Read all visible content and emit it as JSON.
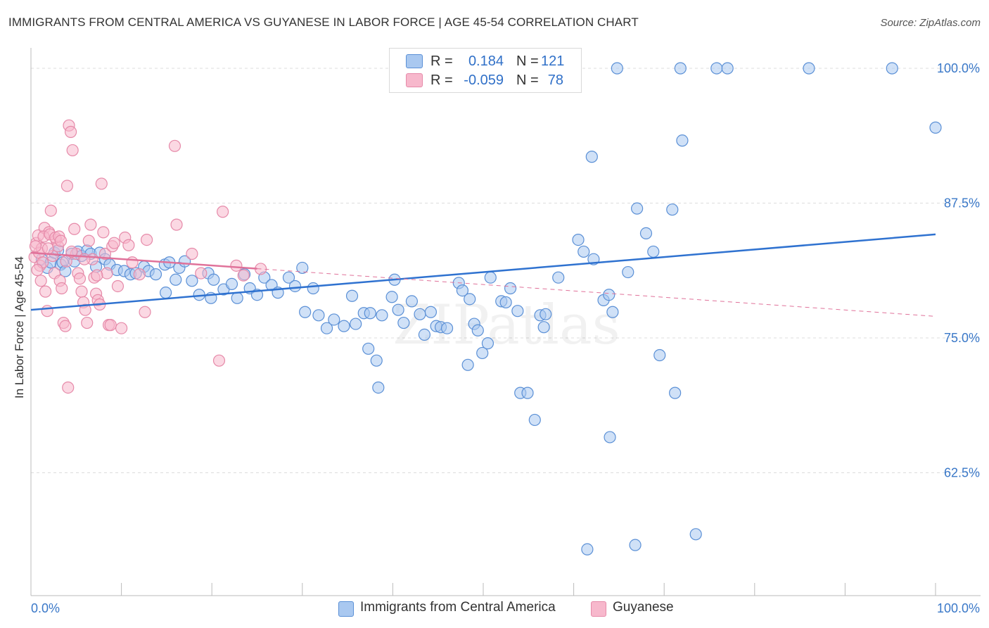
{
  "title": "IMMIGRANTS FROM CENTRAL AMERICA VS GUYANESE IN LABOR FORCE | AGE 45-54 CORRELATION CHART",
  "source": "Source: ZipAtlas.com",
  "watermark": "ZIPatlas",
  "colors": {
    "blue_fill": "#a9c8f0",
    "blue_stroke": "#5b90d6",
    "blue_line": "#2f72d0",
    "pink_fill": "#f7b8cc",
    "pink_stroke": "#e68aa9",
    "pink_line": "#e0729a",
    "grid": "#dddddd",
    "axis_label": "#3a78c8"
  },
  "legend_top": {
    "rows": [
      {
        "series": "blue",
        "r_label": "R =",
        "r_value": "0.184",
        "n_label": "N =",
        "n_value": "121"
      },
      {
        "series": "pink",
        "r_label": "R =",
        "r_value": "-0.059",
        "n_label": "N =",
        "n_value": "78"
      }
    ]
  },
  "legend_bottom": [
    {
      "series": "blue",
      "label": "Immigrants from Central America"
    },
    {
      "series": "pink",
      "label": "Guyanese"
    }
  ],
  "chart_data": {
    "type": "scatter",
    "title": "IMMIGRANTS FROM CENTRAL AMERICA VS GUYANESE IN LABOR FORCE | AGE 45-54 CORRELATION CHART",
    "xlabel": "",
    "ylabel": "In Labor Force | Age 45-54",
    "xlim": [
      0,
      100
    ],
    "ylim": [
      50,
      101.5
    ],
    "x_tick_labels": [
      "0.0%",
      "100.0%"
    ],
    "y_ticks": [
      62.5,
      75.0,
      87.5,
      100.0
    ],
    "y_tick_labels": [
      "62.5%",
      "75.0%",
      "87.5%",
      "100.0%"
    ],
    "grid": true,
    "series": [
      {
        "name": "Immigrants from Central America",
        "color": "blue",
        "trend": {
          "x": [
            0,
            100
          ],
          "y": [
            77.6,
            84.6
          ],
          "style": "solid"
        },
        "points": [
          [
            1.2,
            82.3
          ],
          [
            1.8,
            81.5
          ],
          [
            2.2,
            82.0
          ],
          [
            2.6,
            82.9
          ],
          [
            3.0,
            83.1
          ],
          [
            3.3,
            81.8
          ],
          [
            3.5,
            82.0
          ],
          [
            3.8,
            81.2
          ],
          [
            4.5,
            82.8
          ],
          [
            4.8,
            82.1
          ],
          [
            5.2,
            83.0
          ],
          [
            5.6,
            82.6
          ],
          [
            6.2,
            83.1
          ],
          [
            6.6,
            82.8
          ],
          [
            7.2,
            81.6
          ],
          [
            7.6,
            82.9
          ],
          [
            8.2,
            82.3
          ],
          [
            8.7,
            81.8
          ],
          [
            9.5,
            81.3
          ],
          [
            10.3,
            81.2
          ],
          [
            11.0,
            80.9
          ],
          [
            11.6,
            81.0
          ],
          [
            12.5,
            81.6
          ],
          [
            13.0,
            81.2
          ],
          [
            13.8,
            80.9
          ],
          [
            14.8,
            81.8
          ],
          [
            15.3,
            82.0
          ],
          [
            16.0,
            80.4
          ],
          [
            16.4,
            81.5
          ],
          [
            17.0,
            82.1
          ],
          [
            17.8,
            80.3
          ],
          [
            18.6,
            79.0
          ],
          [
            19.6,
            81.0
          ],
          [
            20.2,
            80.4
          ],
          [
            21.3,
            79.5
          ],
          [
            22.2,
            80.0
          ],
          [
            22.8,
            78.7
          ],
          [
            23.6,
            80.9
          ],
          [
            24.2,
            79.6
          ],
          [
            25.0,
            79.0
          ],
          [
            25.8,
            80.6
          ],
          [
            26.6,
            79.9
          ],
          [
            27.3,
            79.2
          ],
          [
            28.5,
            80.6
          ],
          [
            29.2,
            79.8
          ],
          [
            30.3,
            77.4
          ],
          [
            31.2,
            79.6
          ],
          [
            31.8,
            77.1
          ],
          [
            32.7,
            75.9
          ],
          [
            33.5,
            76.7
          ],
          [
            34.6,
            76.1
          ],
          [
            35.5,
            78.9
          ],
          [
            35.9,
            76.3
          ],
          [
            36.8,
            77.3
          ],
          [
            37.5,
            77.3
          ],
          [
            37.3,
            74.0
          ],
          [
            38.2,
            72.9
          ],
          [
            38.4,
            70.4
          ],
          [
            38.8,
            77.1
          ],
          [
            39.9,
            78.8
          ],
          [
            40.6,
            77.6
          ],
          [
            41.2,
            76.4
          ],
          [
            42.1,
            78.4
          ],
          [
            43.0,
            77.2
          ],
          [
            43.5,
            75.3
          ],
          [
            44.2,
            77.4
          ],
          [
            44.8,
            76.1
          ],
          [
            45.3,
            76.0
          ],
          [
            46.0,
            75.9
          ],
          [
            47.3,
            80.1
          ],
          [
            47.7,
            79.4
          ],
          [
            48.3,
            72.5
          ],
          [
            49.0,
            76.3
          ],
          [
            49.4,
            75.7
          ],
          [
            49.9,
            73.6
          ],
          [
            50.5,
            74.5
          ],
          [
            50.8,
            80.6
          ],
          [
            52.0,
            78.4
          ],
          [
            52.5,
            78.3
          ],
          [
            53.0,
            79.6
          ],
          [
            53.8,
            77.5
          ],
          [
            54.1,
            69.9
          ],
          [
            54.9,
            69.9
          ],
          [
            55.7,
            67.4
          ],
          [
            56.3,
            77.1
          ],
          [
            56.7,
            76.0
          ],
          [
            56.9,
            77.2
          ],
          [
            58.3,
            80.6
          ],
          [
            60.5,
            84.1
          ],
          [
            61.1,
            83.0
          ],
          [
            62.0,
            91.8
          ],
          [
            63.3,
            78.5
          ],
          [
            63.9,
            79.0
          ],
          [
            64.0,
            65.8
          ],
          [
            64.3,
            77.4
          ],
          [
            66.0,
            81.1
          ],
          [
            67.0,
            87.0
          ],
          [
            68.0,
            84.7
          ],
          [
            68.8,
            83.0
          ],
          [
            69.5,
            73.4
          ],
          [
            70.9,
            86.9
          ],
          [
            71.2,
            69.9
          ],
          [
            72.0,
            93.3
          ],
          [
            73.5,
            56.8
          ],
          [
            61.5,
            55.4
          ],
          [
            66.8,
            55.8
          ],
          [
            62.2,
            82.3
          ],
          [
            64.8,
            100.0
          ],
          [
            71.8,
            100.0
          ],
          [
            75.8,
            100.0
          ],
          [
            77.0,
            100.0
          ],
          [
            86.0,
            100.0
          ],
          [
            95.2,
            100.0
          ],
          [
            100.0,
            94.5
          ],
          [
            40.2,
            80.4
          ],
          [
            14.9,
            79.2
          ],
          [
            19.9,
            78.7
          ],
          [
            48.5,
            78.6
          ],
          [
            59.4,
            100.0
          ],
          [
            51.8,
            100.0
          ],
          [
            30.0,
            81.5
          ]
        ]
      },
      {
        "name": "Guyanese",
        "color": "pink",
        "trend": {
          "x": [
            0,
            100
          ],
          "y": [
            82.9,
            77.0
          ],
          "solid_until": 25
        },
        "points": [
          [
            0.4,
            82.5
          ],
          [
            0.6,
            83.8
          ],
          [
            0.8,
            84.5
          ],
          [
            0.9,
            82.9
          ],
          [
            1.0,
            81.7
          ],
          [
            1.1,
            80.3
          ],
          [
            1.2,
            83.3
          ],
          [
            1.3,
            82.0
          ],
          [
            1.5,
            85.2
          ],
          [
            1.6,
            79.3
          ],
          [
            1.8,
            77.5
          ],
          [
            2.0,
            84.8
          ],
          [
            2.2,
            86.8
          ],
          [
            2.4,
            82.6
          ],
          [
            2.6,
            81.0
          ],
          [
            2.8,
            84.1
          ],
          [
            3.0,
            83.5
          ],
          [
            3.2,
            80.3
          ],
          [
            3.4,
            79.6
          ],
          [
            3.6,
            76.4
          ],
          [
            3.8,
            76.1
          ],
          [
            4.0,
            89.1
          ],
          [
            4.2,
            94.7
          ],
          [
            4.4,
            94.1
          ],
          [
            4.6,
            92.4
          ],
          [
            4.8,
            85.1
          ],
          [
            5.0,
            82.8
          ],
          [
            5.2,
            81.0
          ],
          [
            5.4,
            80.5
          ],
          [
            5.6,
            79.3
          ],
          [
            5.8,
            78.3
          ],
          [
            6.0,
            77.6
          ],
          [
            6.2,
            76.4
          ],
          [
            6.4,
            84.0
          ],
          [
            6.6,
            85.5
          ],
          [
            6.8,
            82.3
          ],
          [
            7.0,
            80.6
          ],
          [
            7.2,
            79.1
          ],
          [
            7.4,
            78.5
          ],
          [
            7.6,
            78.1
          ],
          [
            7.8,
            89.3
          ],
          [
            8.0,
            84.8
          ],
          [
            8.2,
            82.8
          ],
          [
            8.4,
            81.0
          ],
          [
            8.6,
            76.2
          ],
          [
            8.8,
            76.2
          ],
          [
            9.0,
            83.5
          ],
          [
            9.2,
            83.8
          ],
          [
            9.6,
            79.8
          ],
          [
            10.0,
            75.9
          ],
          [
            10.4,
            84.3
          ],
          [
            10.8,
            83.6
          ],
          [
            11.2,
            82.0
          ],
          [
            12.6,
            77.4
          ],
          [
            12.0,
            80.9
          ],
          [
            12.8,
            84.1
          ],
          [
            15.9,
            92.8
          ],
          [
            16.1,
            85.5
          ],
          [
            17.8,
            82.8
          ],
          [
            18.8,
            81.0
          ],
          [
            20.8,
            72.9
          ],
          [
            21.2,
            86.7
          ],
          [
            22.7,
            81.7
          ],
          [
            23.5,
            80.8
          ],
          [
            25.4,
            81.4
          ],
          [
            0.5,
            83.5
          ],
          [
            1.4,
            84.4
          ],
          [
            2.1,
            84.6
          ],
          [
            2.7,
            84.3
          ],
          [
            3.1,
            84.4
          ],
          [
            3.3,
            84.0
          ],
          [
            4.1,
            70.4
          ],
          [
            4.5,
            83.0
          ],
          [
            0.7,
            81.3
          ],
          [
            1.9,
            83.3
          ],
          [
            5.9,
            82.3
          ],
          [
            7.3,
            80.8
          ],
          [
            3.9,
            82.1
          ]
        ]
      }
    ]
  }
}
